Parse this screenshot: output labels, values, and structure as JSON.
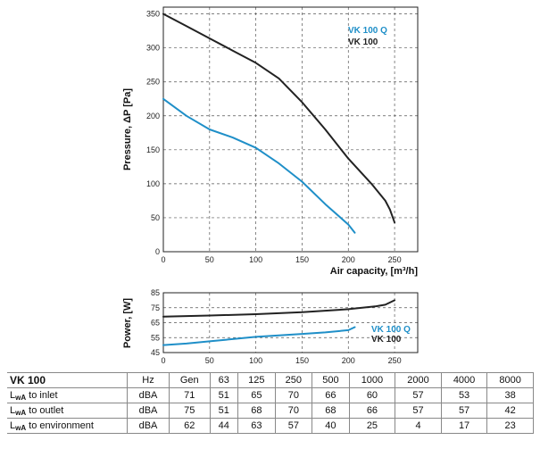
{
  "chart_data": [
    {
      "type": "line",
      "title": "",
      "xlabel": "Air capacity, [m³/h]",
      "ylabel": "Pressure, ΔP [Pa]",
      "xlim": [
        0,
        275
      ],
      "ylim": [
        0,
        360
      ],
      "xticks": [
        0,
        50,
        100,
        150,
        200,
        250
      ],
      "yticks": [
        0,
        50,
        100,
        150,
        200,
        250,
        300,
        350
      ],
      "grid": "dashed",
      "legend_position": "top-right",
      "series": [
        {
          "name": "VK 100 Q",
          "color": "#1f8fc8",
          "x": [
            0,
            25,
            50,
            75,
            100,
            125,
            150,
            175,
            200,
            207
          ],
          "y": [
            225,
            200,
            180,
            168,
            153,
            130,
            103,
            70,
            40,
            28
          ]
        },
        {
          "name": "VK 100",
          "color": "#222222",
          "x": [
            0,
            25,
            50,
            75,
            100,
            125,
            150,
            175,
            200,
            225,
            240,
            245,
            250
          ],
          "y": [
            350,
            332,
            314,
            296,
            278,
            255,
            220,
            180,
            137,
            100,
            75,
            62,
            43
          ]
        }
      ]
    },
    {
      "type": "line",
      "title": "",
      "xlabel": "",
      "ylabel": "Power, [W]",
      "xlim": [
        0,
        275
      ],
      "ylim": [
        45,
        85
      ],
      "xticks": [
        0,
        50,
        100,
        150,
        200,
        250
      ],
      "yticks": [
        45,
        55,
        65,
        75,
        85
      ],
      "grid": "dashed",
      "legend_position": "right",
      "series": [
        {
          "name": "VK 100 Q",
          "color": "#1f8fc8",
          "x": [
            0,
            25,
            50,
            75,
            100,
            125,
            150,
            175,
            200,
            207
          ],
          "y": [
            50,
            51,
            52.5,
            54,
            55.5,
            56.5,
            57.5,
            58.5,
            60,
            62
          ]
        },
        {
          "name": "VK 100",
          "color": "#222222",
          "x": [
            0,
            50,
            100,
            150,
            200,
            230,
            240,
            245,
            250
          ],
          "y": [
            69,
            69.8,
            70.7,
            72,
            74,
            76,
            77,
            78.5,
            80
          ]
        }
      ]
    }
  ],
  "noise_table": {
    "title": "VK 100",
    "hz_label": "Hz",
    "columns": [
      "Gen",
      "63",
      "125",
      "250",
      "500",
      "1000",
      "2000",
      "4000",
      "8000"
    ],
    "rows": [
      {
        "label_main": "L",
        "label_sub": "wA",
        "label_rest": " to inlet",
        "unit": "dBA",
        "values": [
          "71",
          "51",
          "65",
          "70",
          "66",
          "60",
          "57",
          "53",
          "38"
        ]
      },
      {
        "label_main": "L",
        "label_sub": "wA",
        "label_rest": " to outlet",
        "unit": "dBA",
        "values": [
          "75",
          "51",
          "68",
          "70",
          "68",
          "66",
          "57",
          "57",
          "42"
        ]
      },
      {
        "label_main": "L",
        "label_sub": "wA",
        "label_rest": " to environment",
        "unit": "dBA",
        "values": [
          "62",
          "44",
          "63",
          "57",
          "40",
          "25",
          "4",
          "17",
          "23"
        ]
      }
    ]
  }
}
